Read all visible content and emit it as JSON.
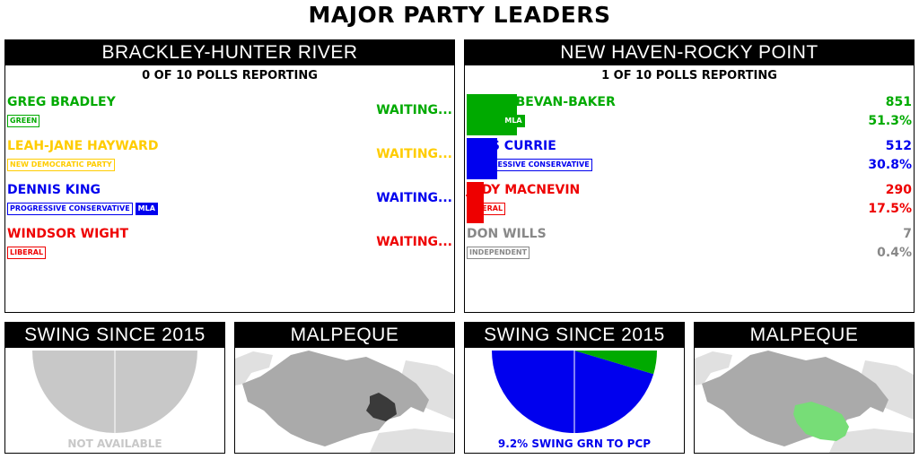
{
  "header": {
    "title": "MAJOR PARTY LEADERS"
  },
  "colors": {
    "green": "#00aa00",
    "ndp": "#ffcc00",
    "pc": "#0000ee",
    "liberal": "#ee0000",
    "independent": "#888888",
    "not_available": "#c8c8c8",
    "map_land": "#e0e0e0",
    "map_district": "#aaaaaa",
    "map_riding_dark": "#3a3a3a",
    "map_riding_green": "#77dd77"
  },
  "left_race": {
    "name": "BRACKLEY-HUNTER RIVER",
    "polls": "0 OF 10 POLLS REPORTING",
    "candidates": [
      {
        "name": "GREG BRADLEY",
        "party": "GREEN",
        "status": "WAITING...",
        "color": "#00aa00"
      },
      {
        "name": "LEAH-JANE HAYWARD",
        "party": "NEW DEMOCRATIC PARTY",
        "status": "WAITING...",
        "color": "#ffcc00"
      },
      {
        "name": "DENNIS KING",
        "party": "PROGRESSIVE CONSERVATIVE",
        "mla": "MLA",
        "status": "WAITING...",
        "color": "#0000ee"
      },
      {
        "name": "WINDSOR WIGHT",
        "party": "LIBERAL",
        "status": "WAITING...",
        "color": "#ee0000"
      }
    ],
    "swing": {
      "title": "SWING SINCE 2015",
      "caption": "NOT AVAILABLE"
    },
    "map": {
      "title": "MALPEQUE"
    }
  },
  "right_race": {
    "name": "NEW HAVEN-ROCKY POINT",
    "polls": "1 OF 10 POLLS REPORTING",
    "candidates": [
      {
        "name": "PETER BEVAN-BAKER",
        "party": "GREEN",
        "mla": "MLA",
        "votes": "851",
        "pct": "51.3%",
        "share": 0.513,
        "color": "#00aa00"
      },
      {
        "name": "KRIS CURRIE",
        "party": "PROGRESSIVE CONSERVATIVE",
        "votes": "512",
        "pct": "30.8%",
        "share": 0.308,
        "color": "#0000ee"
      },
      {
        "name": "JUDY MACNEVIN",
        "party": "LIBERAL",
        "votes": "290",
        "pct": "17.5%",
        "share": 0.175,
        "color": "#ee0000"
      },
      {
        "name": "DON WILLS",
        "party": "INDEPENDENT",
        "votes": "7",
        "pct": "0.4%",
        "share": 0.004,
        "color": "#888888"
      }
    ],
    "swing": {
      "title": "SWING SINCE 2015",
      "caption": "9.2% SWING GRN TO PCP",
      "pcp_fraction": 0.908,
      "grn_fraction": 0.092
    },
    "map": {
      "title": "MALPEQUE"
    }
  }
}
